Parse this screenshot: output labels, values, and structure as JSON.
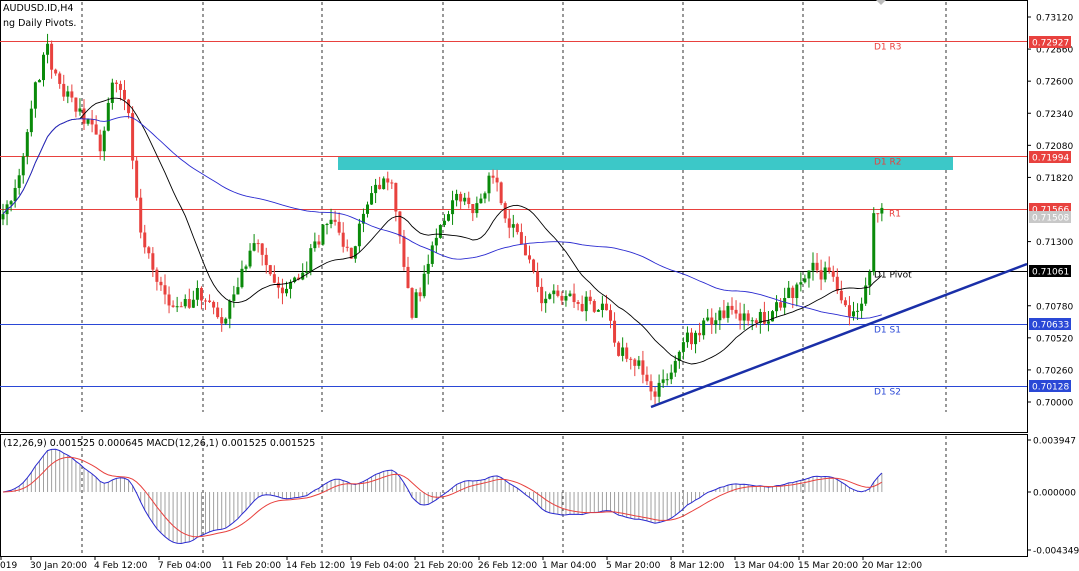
{
  "header": {
    "symbol_line": "AUDUSD.ID,H4",
    "indicator_line": "ng Daily Pivots."
  },
  "macd": {
    "label": "(12,26,9) 0.001525 0.000645 MACD(12,26,1) 0.001525 0.001525",
    "axis_ticks": [
      "0.003947",
      "0.000000",
      "-0.004349"
    ]
  },
  "price_axis_ticks": [
    "0.73120",
    "0.72860",
    "0.72600",
    "0.72340",
    "0.72080",
    "0.71820",
    "0.71300",
    "0.70780",
    "0.70520",
    "0.70260",
    "0.70000"
  ],
  "price_badges": [
    {
      "value": "0.72927",
      "color": "#e8413e"
    },
    {
      "value": "0.71994",
      "color": "#e8413e"
    },
    {
      "value": "0.71566",
      "color": "#e8413e"
    },
    {
      "value": "0.71508",
      "color": "#c8c8c8"
    },
    {
      "value": "0.71061",
      "color": "#000000"
    },
    {
      "value": "0.70633",
      "color": "#2a48d6"
    },
    {
      "value": "0.70128",
      "color": "#2a48d6"
    }
  ],
  "pivot_lines": [
    {
      "name": "D1 R3",
      "price": 0.72927,
      "color": "#e8413e"
    },
    {
      "name": "D1 R2",
      "price": 0.71994,
      "color": "#e8413e"
    },
    {
      "name": "R1",
      "price": 0.71566,
      "color": "#e8413e"
    },
    {
      "name": "D1 Pivot",
      "price": 0.71061,
      "color": "#000000"
    },
    {
      "name": "D1 S1",
      "price": 0.70633,
      "color": "#2a48d6"
    },
    {
      "name": "D1 S2",
      "price": 0.70128,
      "color": "#2a48d6"
    }
  ],
  "time_axis_ticks": [
    "019",
    "30 Jan 20:00",
    "4 Feb 12:00",
    "7 Feb 04:00",
    "11 Feb 20:00",
    "14 Feb 12:00",
    "19 Feb 04:00",
    "21 Feb 20:00",
    "26 Feb 12:00",
    "1 Mar 04:00",
    "5 Mar 20:00",
    "8 Mar 12:00",
    "13 Mar 04:00",
    "15 Mar 20:00",
    "20 Mar 12:00"
  ],
  "colors": {
    "bull": "#0a8a0a",
    "bear": "#e8413e",
    "ma_fast": "#000000",
    "ma_slow": "#2a2ad0",
    "trendline": "#1a2fa8",
    "zone": "#3cc8c8",
    "macd_line": "#2a2ad0",
    "signal_line": "#e8413e"
  }
}
